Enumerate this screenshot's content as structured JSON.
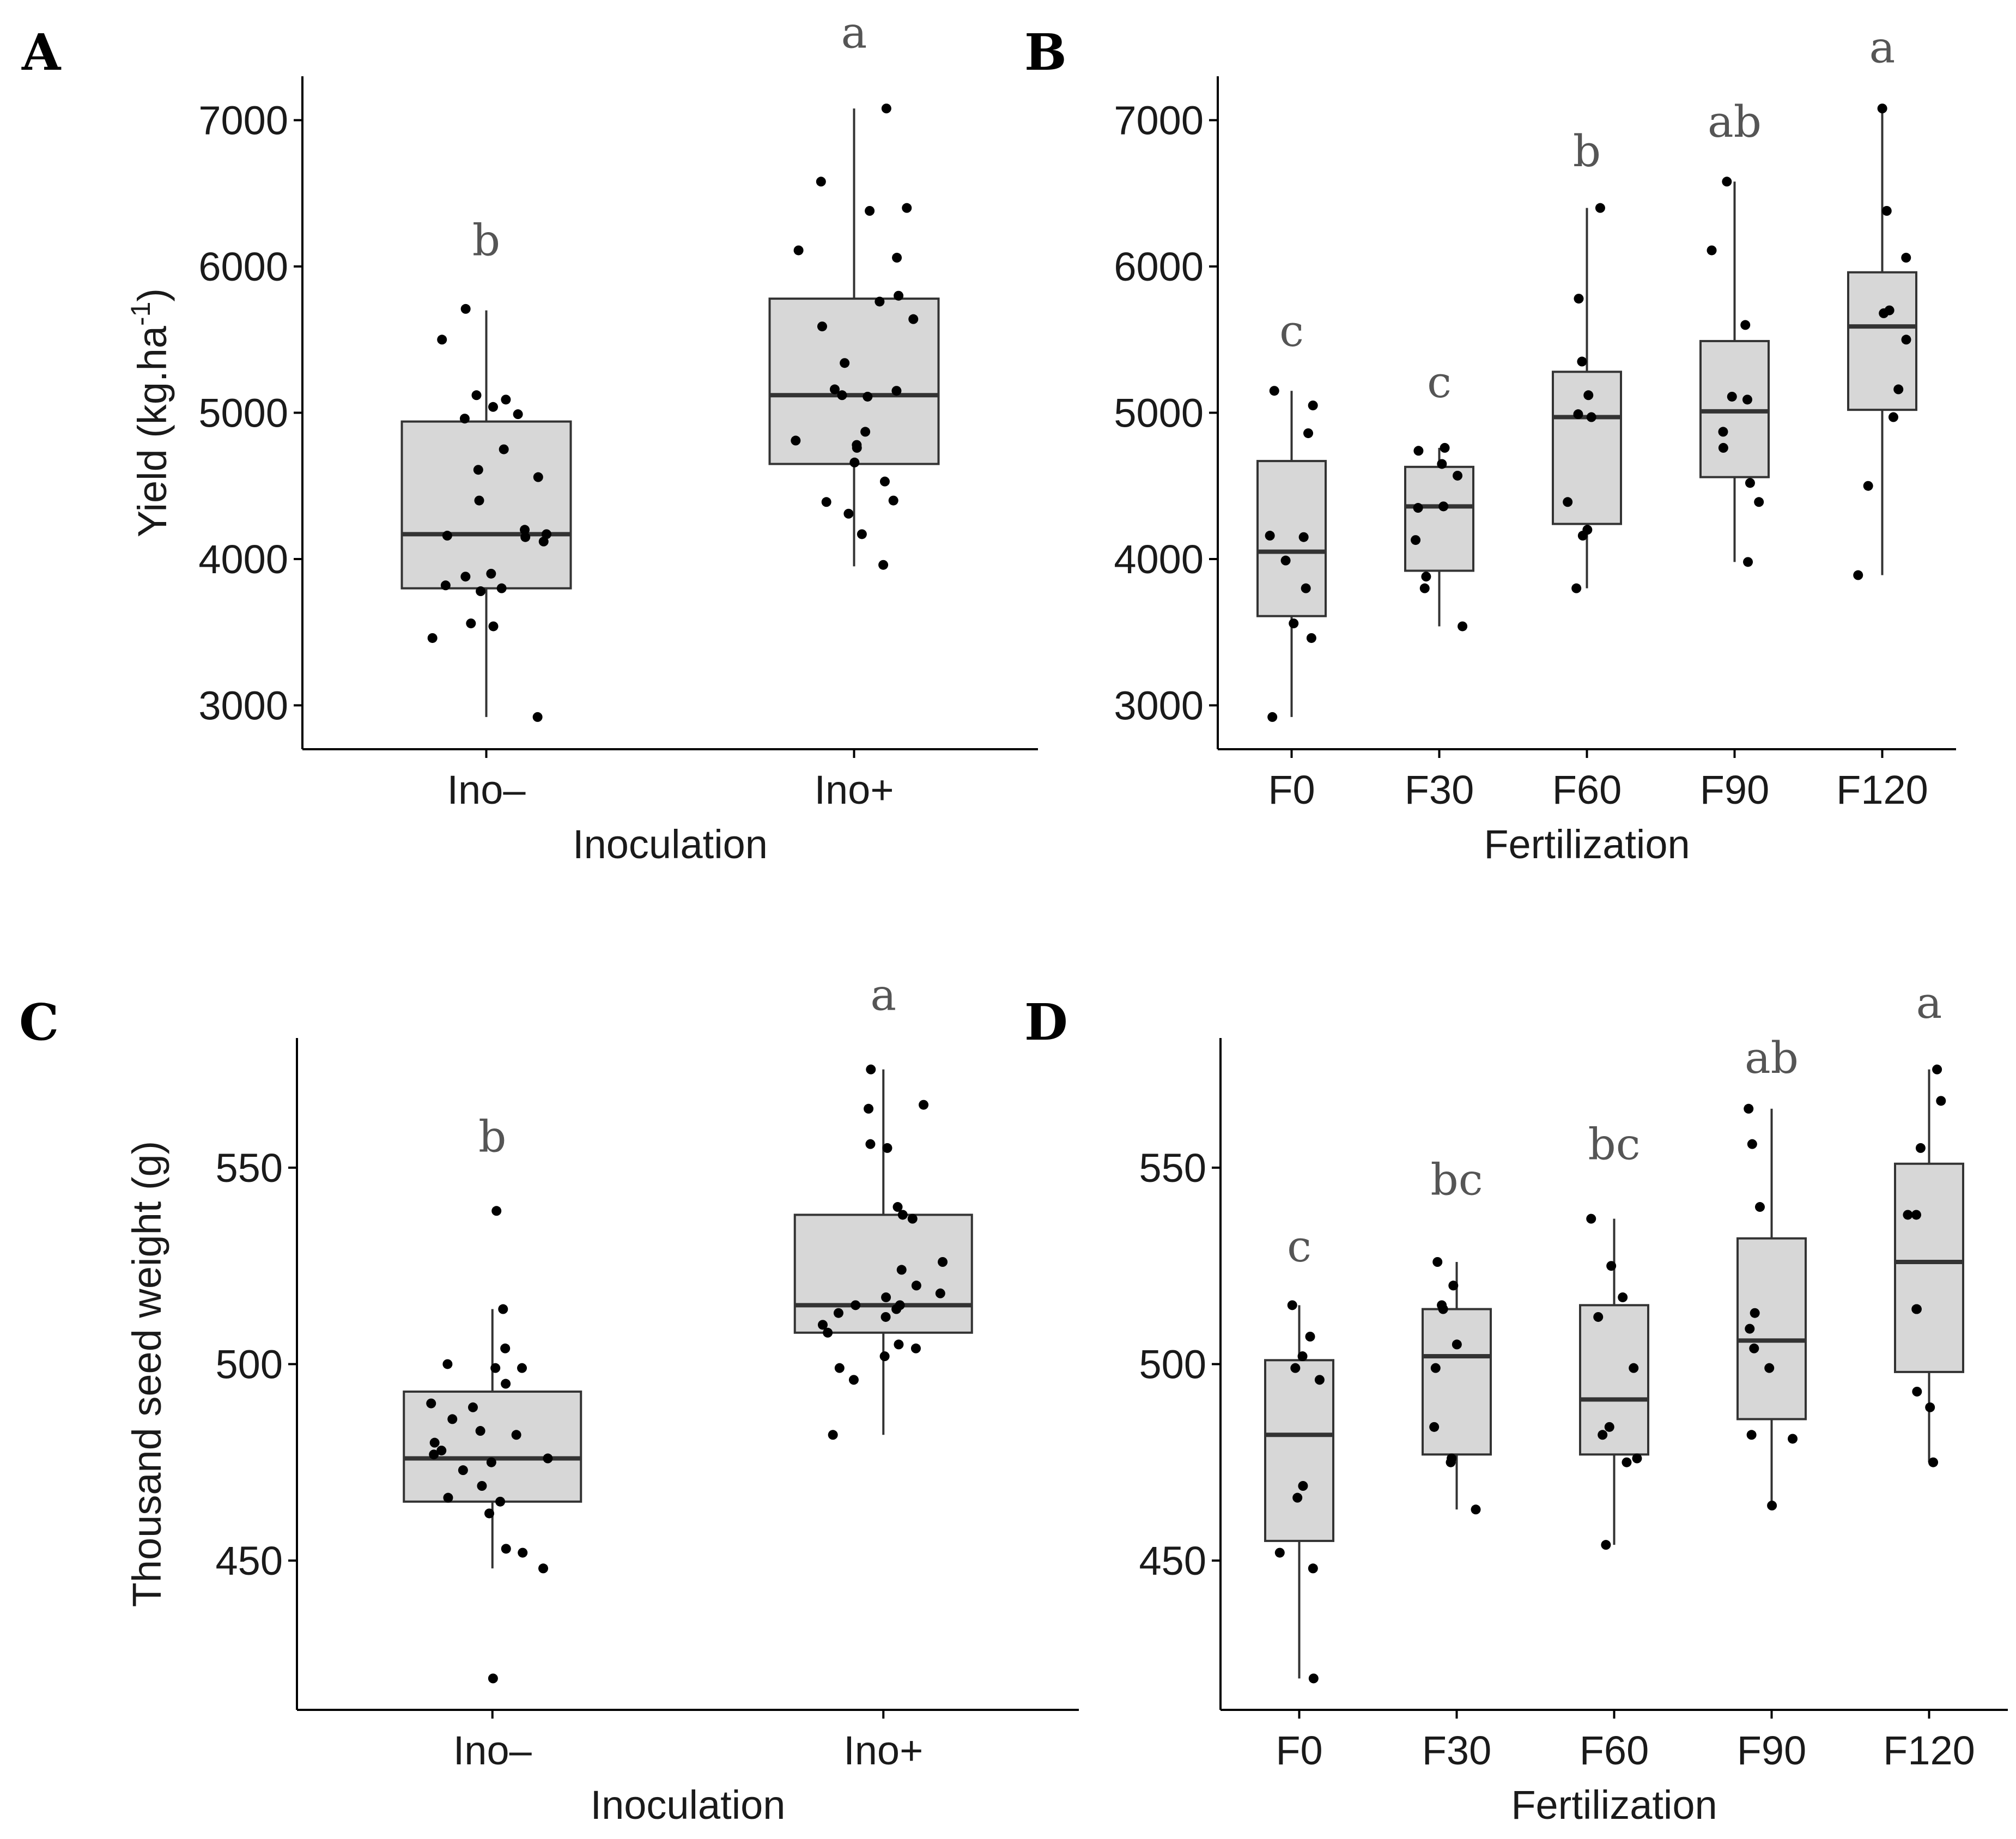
{
  "chart_data": [
    {
      "panel_label": "A",
      "type": "box",
      "xlabel": "Inoculation",
      "ylabel": "Yield (kg.ha⁻¹)",
      "ylabel_main": "Yield (kg.ha",
      "ylabel_sup": "-1",
      "ylabel_close": ")",
      "ylim": [
        2700,
        7300
      ],
      "yticks": [
        3000,
        4000,
        5000,
        6000,
        7000
      ],
      "categories": [
        "Ino–",
        "Ino+"
      ],
      "groups": [
        {
          "category": "Ino–",
          "min": 2920,
          "q1": 3800,
          "median": 4170,
          "q3": 4940,
          "max": 5700,
          "letter": "b",
          "letter_y": 6180,
          "points": [
            2920,
            3460,
            3540,
            3560,
            3780,
            3800,
            3820,
            3880,
            3900,
            4120,
            4150,
            4160,
            4170,
            4200,
            4400,
            4560,
            4610,
            4750,
            4960,
            4990,
            5040,
            5090,
            5120,
            5500,
            5710
          ]
        },
        {
          "category": "Ino+",
          "min": 3950,
          "q1": 4650,
          "median": 5120,
          "q3": 5780,
          "max": 7080,
          "letter": "a",
          "letter_y": 7600,
          "points": [
            3960,
            4170,
            4310,
            4390,
            4400,
            4530,
            4660,
            4760,
            4780,
            4810,
            4870,
            5110,
            5120,
            5150,
            5160,
            5340,
            5590,
            5640,
            5760,
            5800,
            6060,
            6110,
            6380,
            6400,
            6580,
            7080
          ]
        }
      ]
    },
    {
      "panel_label": "B",
      "type": "box",
      "xlabel": "Fertilization",
      "ylabel": "",
      "ylim": [
        2700,
        7300
      ],
      "yticks": [
        3000,
        4000,
        5000,
        6000,
        7000
      ],
      "categories": [
        "F0",
        "F30",
        "F60",
        "F90",
        "F120"
      ],
      "groups": [
        {
          "category": "F0",
          "min": 2920,
          "q1": 3610,
          "median": 4050,
          "q3": 4670,
          "max": 5150,
          "letter": "c",
          "letter_y": 5560,
          "points": [
            2920,
            3460,
            3560,
            3800,
            3990,
            4150,
            4160,
            4860,
            5050,
            5150
          ]
        },
        {
          "category": "F30",
          "min": 3540,
          "q1": 3920,
          "median": 4360,
          "q3": 4630,
          "max": 4760,
          "letter": "c",
          "letter_y": 5210,
          "points": [
            3540,
            3800,
            3880,
            4130,
            4350,
            4360,
            4570,
            4650,
            4740,
            4760
          ]
        },
        {
          "category": "F60",
          "min": 3800,
          "q1": 4240,
          "median": 4970,
          "q3": 5280,
          "max": 6400,
          "letter": "b",
          "letter_y": 6790,
          "points": [
            3800,
            4160,
            4200,
            4390,
            4970,
            4990,
            5120,
            5350,
            5780,
            6400
          ]
        },
        {
          "category": "F90",
          "min": 3980,
          "q1": 4560,
          "median": 5010,
          "q3": 5490,
          "max": 6580,
          "letter": "ab",
          "letter_y": 6990,
          "points": [
            3980,
            4390,
            4520,
            4760,
            4870,
            5090,
            5110,
            5600,
            6110,
            6580
          ]
        },
        {
          "category": "F120",
          "min": 3890,
          "q1": 5020,
          "median": 5590,
          "q3": 5960,
          "max": 7080,
          "letter": "a",
          "letter_y": 7500,
          "points": [
            3890,
            4500,
            4970,
            5160,
            5500,
            5680,
            5700,
            6060,
            6380,
            7080
          ]
        }
      ]
    },
    {
      "panel_label": "C",
      "type": "box",
      "xlabel": "Inoculation",
      "ylabel": "Thousand seed weight (g)",
      "ylim": [
        412,
        583
      ],
      "yticks": [
        450,
        500,
        550
      ],
      "categories": [
        "Ino–",
        "Ino+"
      ],
      "groups": [
        {
          "category": "Ino–",
          "min": 448,
          "q1": 465,
          "median": 476,
          "q3": 493,
          "max": 514,
          "letter": "b",
          "letter_y": 558,
          "points": [
            420,
            448,
            452,
            453,
            462,
            465,
            466,
            469,
            473,
            475,
            476,
            477,
            478,
            480,
            482,
            483,
            486,
            489,
            490,
            495,
            499,
            499,
            500,
            504,
            514,
            539
          ]
        },
        {
          "category": "Ino+",
          "min": 482,
          "q1": 508,
          "median": 515,
          "q3": 538,
          "max": 575,
          "letter": "a",
          "letter_y": 594,
          "points": [
            482,
            496,
            499,
            502,
            504,
            505,
            508,
            510,
            512,
            513,
            514,
            515,
            515,
            517,
            518,
            520,
            524,
            526,
            537,
            538,
            540,
            555,
            556,
            565,
            566,
            575
          ]
        }
      ]
    },
    {
      "panel_label": "D",
      "type": "box",
      "xlabel": "Fertilization",
      "ylabel": "",
      "ylim": [
        412,
        583
      ],
      "yticks": [
        450,
        500,
        550
      ],
      "categories": [
        "F0",
        "F30",
        "F60",
        "F90",
        "F120"
      ],
      "groups": [
        {
          "category": "F0",
          "min": 420,
          "q1": 455,
          "median": 482,
          "q3": 501,
          "max": 515,
          "letter": "c",
          "letter_y": 530,
          "points": [
            420,
            448,
            452,
            466,
            469,
            496,
            499,
            502,
            507,
            515
          ]
        },
        {
          "category": "F30",
          "min": 463,
          "q1": 477,
          "median": 502,
          "q3": 514,
          "max": 526,
          "letter": "bc",
          "letter_y": 547,
          "points": [
            463,
            475,
            476,
            484,
            499,
            505,
            514,
            515,
            520,
            526
          ]
        },
        {
          "category": "F60",
          "min": 454,
          "q1": 477,
          "median": 491,
          "q3": 515,
          "max": 537,
          "letter": "bc",
          "letter_y": 556,
          "points": [
            454,
            475,
            476,
            482,
            484,
            499,
            512,
            517,
            525,
            537
          ]
        },
        {
          "category": "F90",
          "min": 464,
          "q1": 486,
          "median": 506,
          "q3": 532,
          "max": 565,
          "letter": "ab",
          "letter_y": 578,
          "points": [
            464,
            481,
            482,
            499,
            504,
            509,
            513,
            540,
            556,
            565
          ]
        },
        {
          "category": "F120",
          "min": 475,
          "q1": 498,
          "median": 526,
          "q3": 551,
          "max": 575,
          "letter": "a",
          "letter_y": 592,
          "points": [
            475,
            489,
            493,
            514,
            514,
            538,
            538,
            555,
            567,
            575
          ]
        }
      ]
    }
  ]
}
